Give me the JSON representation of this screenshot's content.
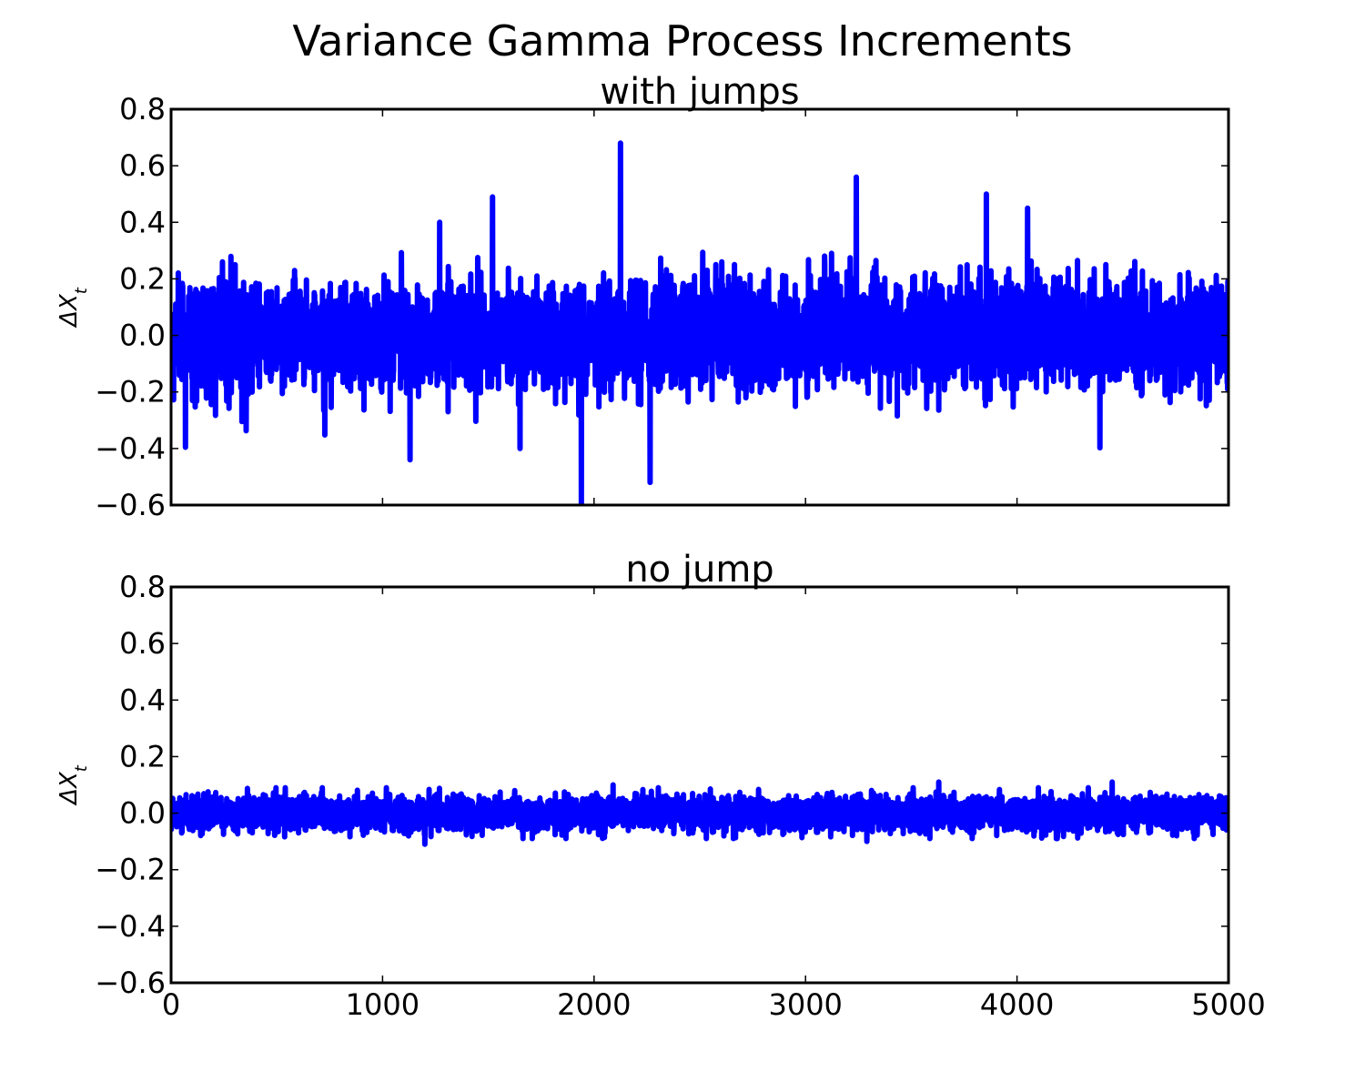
{
  "figure": {
    "suptitle": "Variance Gamma Process Increments",
    "line_color": "#0000ff"
  },
  "chart_data": [
    {
      "type": "line",
      "title": "with jumps",
      "ylabel": "ΔX_t",
      "xlim": [
        0,
        5000
      ],
      "ylim": [
        -0.6,
        0.8
      ],
      "yticks": [
        "0.8",
        "0.6",
        "0.4",
        "0.2",
        "0.0",
        "−0.2",
        "−0.4",
        "−0.6"
      ],
      "yticks_values": [
        0.8,
        0.6,
        0.4,
        0.2,
        0.0,
        -0.2,
        -0.4,
        -0.6
      ],
      "xticks_values": [
        0,
        1000,
        2000,
        3000,
        4000,
        5000
      ],
      "show_xticklabels": false,
      "series": [
        {
          "approx_amplitude": 0.2,
          "noise_std": 0.09,
          "values": [],
          "spikes": [
            {
              "x": 1940,
              "y": -0.62
            },
            {
              "x": 2125,
              "y": 0.68
            },
            {
              "x": 3240,
              "y": 0.56
            },
            {
              "x": 2265,
              "y": -0.52
            },
            {
              "x": 3855,
              "y": 0.5
            },
            {
              "x": 1520,
              "y": 0.49
            },
            {
              "x": 1130,
              "y": -0.44
            },
            {
              "x": 1650,
              "y": -0.4
            },
            {
              "x": 4050,
              "y": 0.45
            },
            {
              "x": 1270,
              "y": 0.4
            }
          ]
        }
      ]
    },
    {
      "type": "line",
      "title": "no jump",
      "ylabel": "ΔX_t",
      "xlim": [
        0,
        5000
      ],
      "ylim": [
        -0.6,
        0.8
      ],
      "yticks": [
        "0.8",
        "0.6",
        "0.4",
        "0.2",
        "0.0",
        "−0.2",
        "−0.4",
        "−0.6"
      ],
      "yticks_values": [
        0.8,
        0.6,
        0.4,
        0.2,
        0.0,
        -0.2,
        -0.4,
        -0.6
      ],
      "xticks": [
        "0",
        "1000",
        "2000",
        "3000",
        "4000",
        "5000"
      ],
      "xticks_values": [
        0,
        1000,
        2000,
        3000,
        4000,
        5000
      ],
      "show_xticklabels": true,
      "series": [
        {
          "approx_amplitude": 0.06,
          "noise_std": 0.03,
          "values": [],
          "spikes": [
            {
              "x": 2090,
              "y": 0.1
            },
            {
              "x": 3630,
              "y": 0.11
            },
            {
              "x": 4450,
              "y": 0.11
            },
            {
              "x": 1200,
              "y": -0.11
            },
            {
              "x": 3290,
              "y": -0.1
            }
          ]
        }
      ]
    }
  ]
}
